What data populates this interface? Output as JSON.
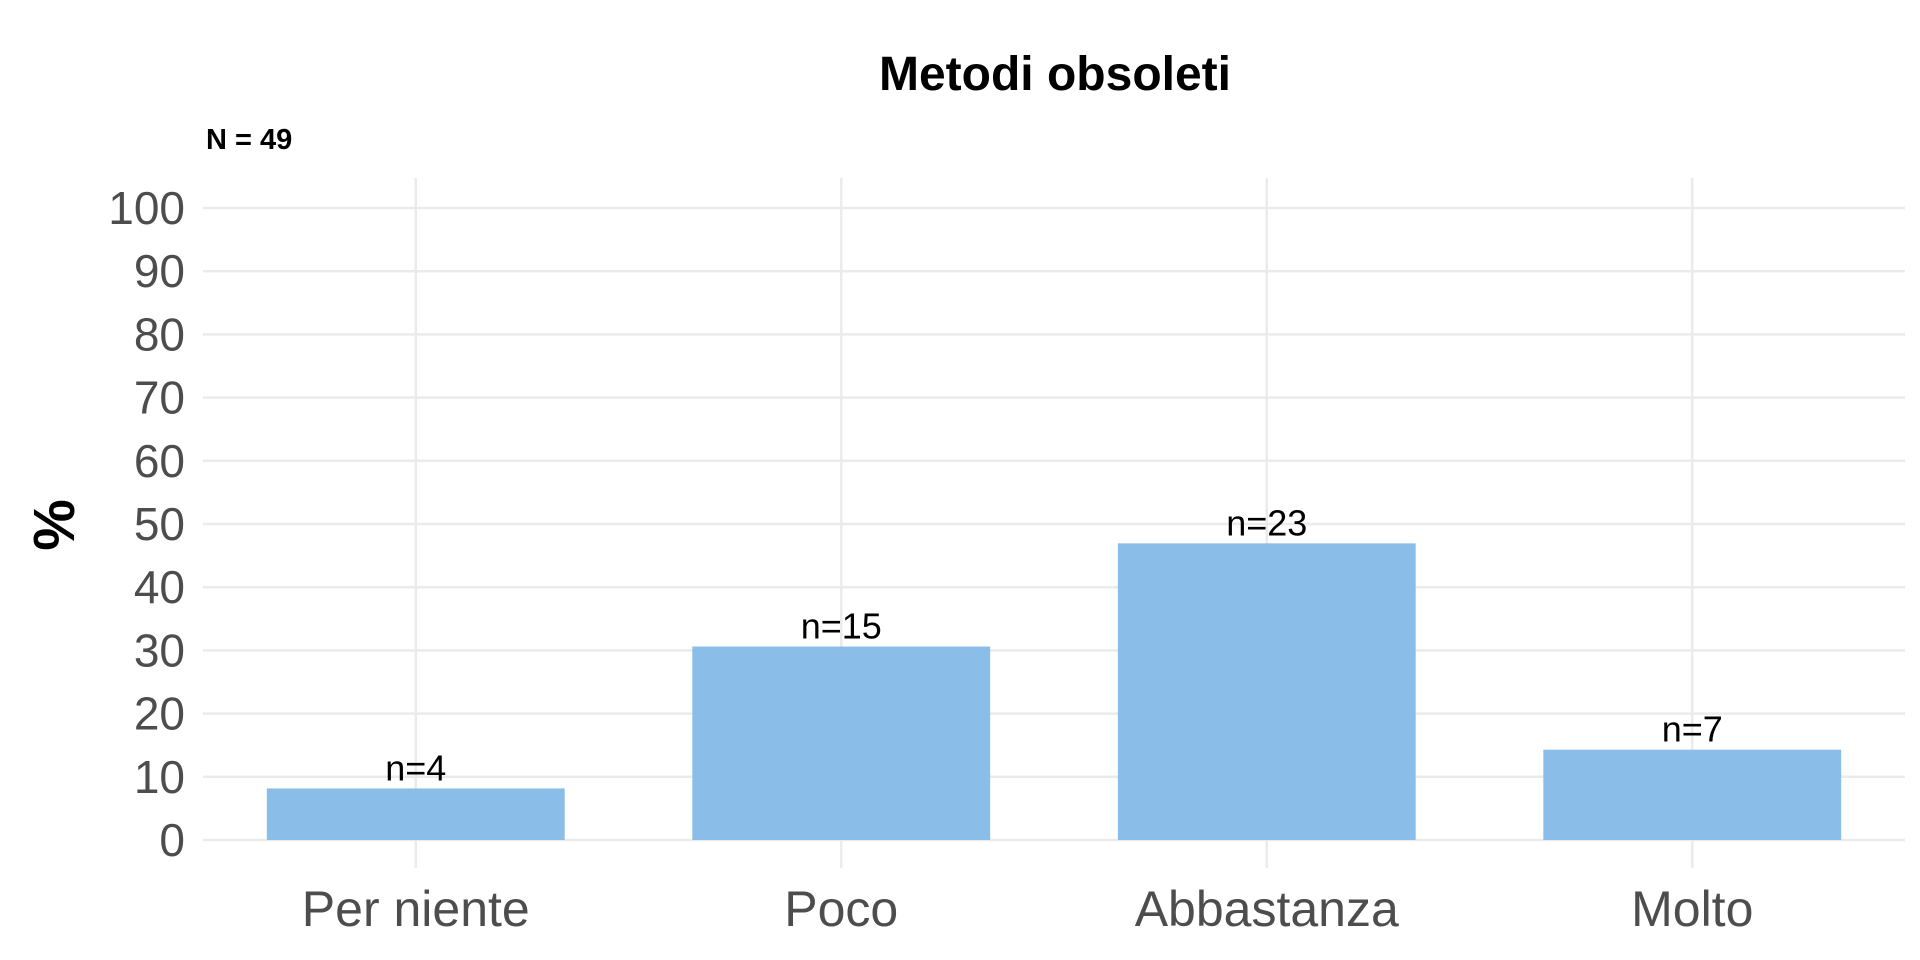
{
  "chart_data": {
    "type": "bar",
    "title": "Metodi obsoleti",
    "subtitle": "N = 49",
    "ylabel": "%",
    "xlabel": "",
    "categories": [
      "Per niente",
      "Poco",
      "Abbastanza",
      "Molto"
    ],
    "values": [
      8.16,
      30.61,
      46.94,
      14.29
    ],
    "data_labels": [
      "n=4",
      "n=15",
      "n=23",
      "n=7"
    ],
    "ylim": [
      0,
      100
    ],
    "yticks": [
      "0",
      "10",
      "20",
      "30",
      "40",
      "50",
      "60",
      "70",
      "80",
      "90",
      "100"
    ],
    "grid": true,
    "legend": "none",
    "colors": {
      "bar": "#8bbde9",
      "grid": "#ebebeb",
      "tick_text": "#4d4d4d",
      "title": "#000000"
    }
  }
}
